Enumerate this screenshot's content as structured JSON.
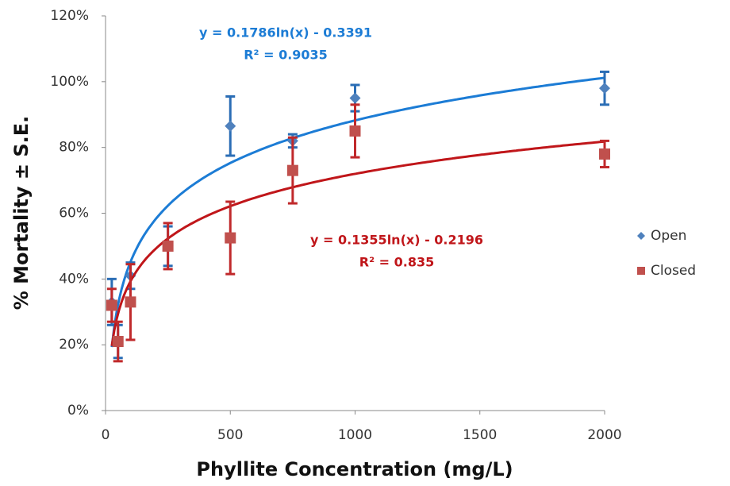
{
  "chart_data": {
    "type": "scatter",
    "x_label": "Phyllite Concentration (mg/L)",
    "y_label": "% Mortality ± S.E.",
    "xlim": [
      0,
      2000
    ],
    "xticks": [
      0,
      500,
      1000,
      1500,
      2000
    ],
    "ylim": [
      0,
      120
    ],
    "yticks": [
      {
        "value": 0,
        "label": "0%"
      },
      {
        "value": 20,
        "label": "20%"
      },
      {
        "value": 40,
        "label": "40%"
      },
      {
        "value": 60,
        "label": "60%"
      },
      {
        "value": 80,
        "label": "80%"
      },
      {
        "value": 100,
        "label": "100%"
      },
      {
        "value": 120,
        "label": "120%"
      }
    ],
    "grid": false,
    "legend": "right",
    "trendline": "log",
    "series": [
      {
        "name": "Open",
        "color": "#4f81bd",
        "marker": "diamond",
        "error_color": "#2a6db5",
        "trend_color": "#1c7cd5",
        "x": [
          25,
          50,
          100,
          250,
          500,
          750,
          1000,
          2000
        ],
        "values": [
          33,
          21,
          41,
          50,
          86.5,
          82,
          95,
          98
        ],
        "errors": [
          7,
          5,
          4,
          6,
          9,
          2,
          4,
          5
        ],
        "equation": "y = 0.1786ln(x) - 0.3391",
        "r2": "R² = 0.9035"
      },
      {
        "name": "Closed",
        "color": "#c0504d",
        "marker": "square",
        "error_color": "#c0292b",
        "trend_color": "#c0161a",
        "x": [
          25,
          50,
          100,
          250,
          500,
          750,
          1000,
          2000
        ],
        "values": [
          32,
          21,
          33,
          50,
          52.5,
          73,
          85,
          78
        ],
        "errors": [
          5,
          6,
          11.5,
          7,
          11,
          10,
          8,
          4
        ],
        "equation": "y = 0.1355ln(x) - 0.2196",
        "r2": "R² = 0.835"
      }
    ]
  }
}
